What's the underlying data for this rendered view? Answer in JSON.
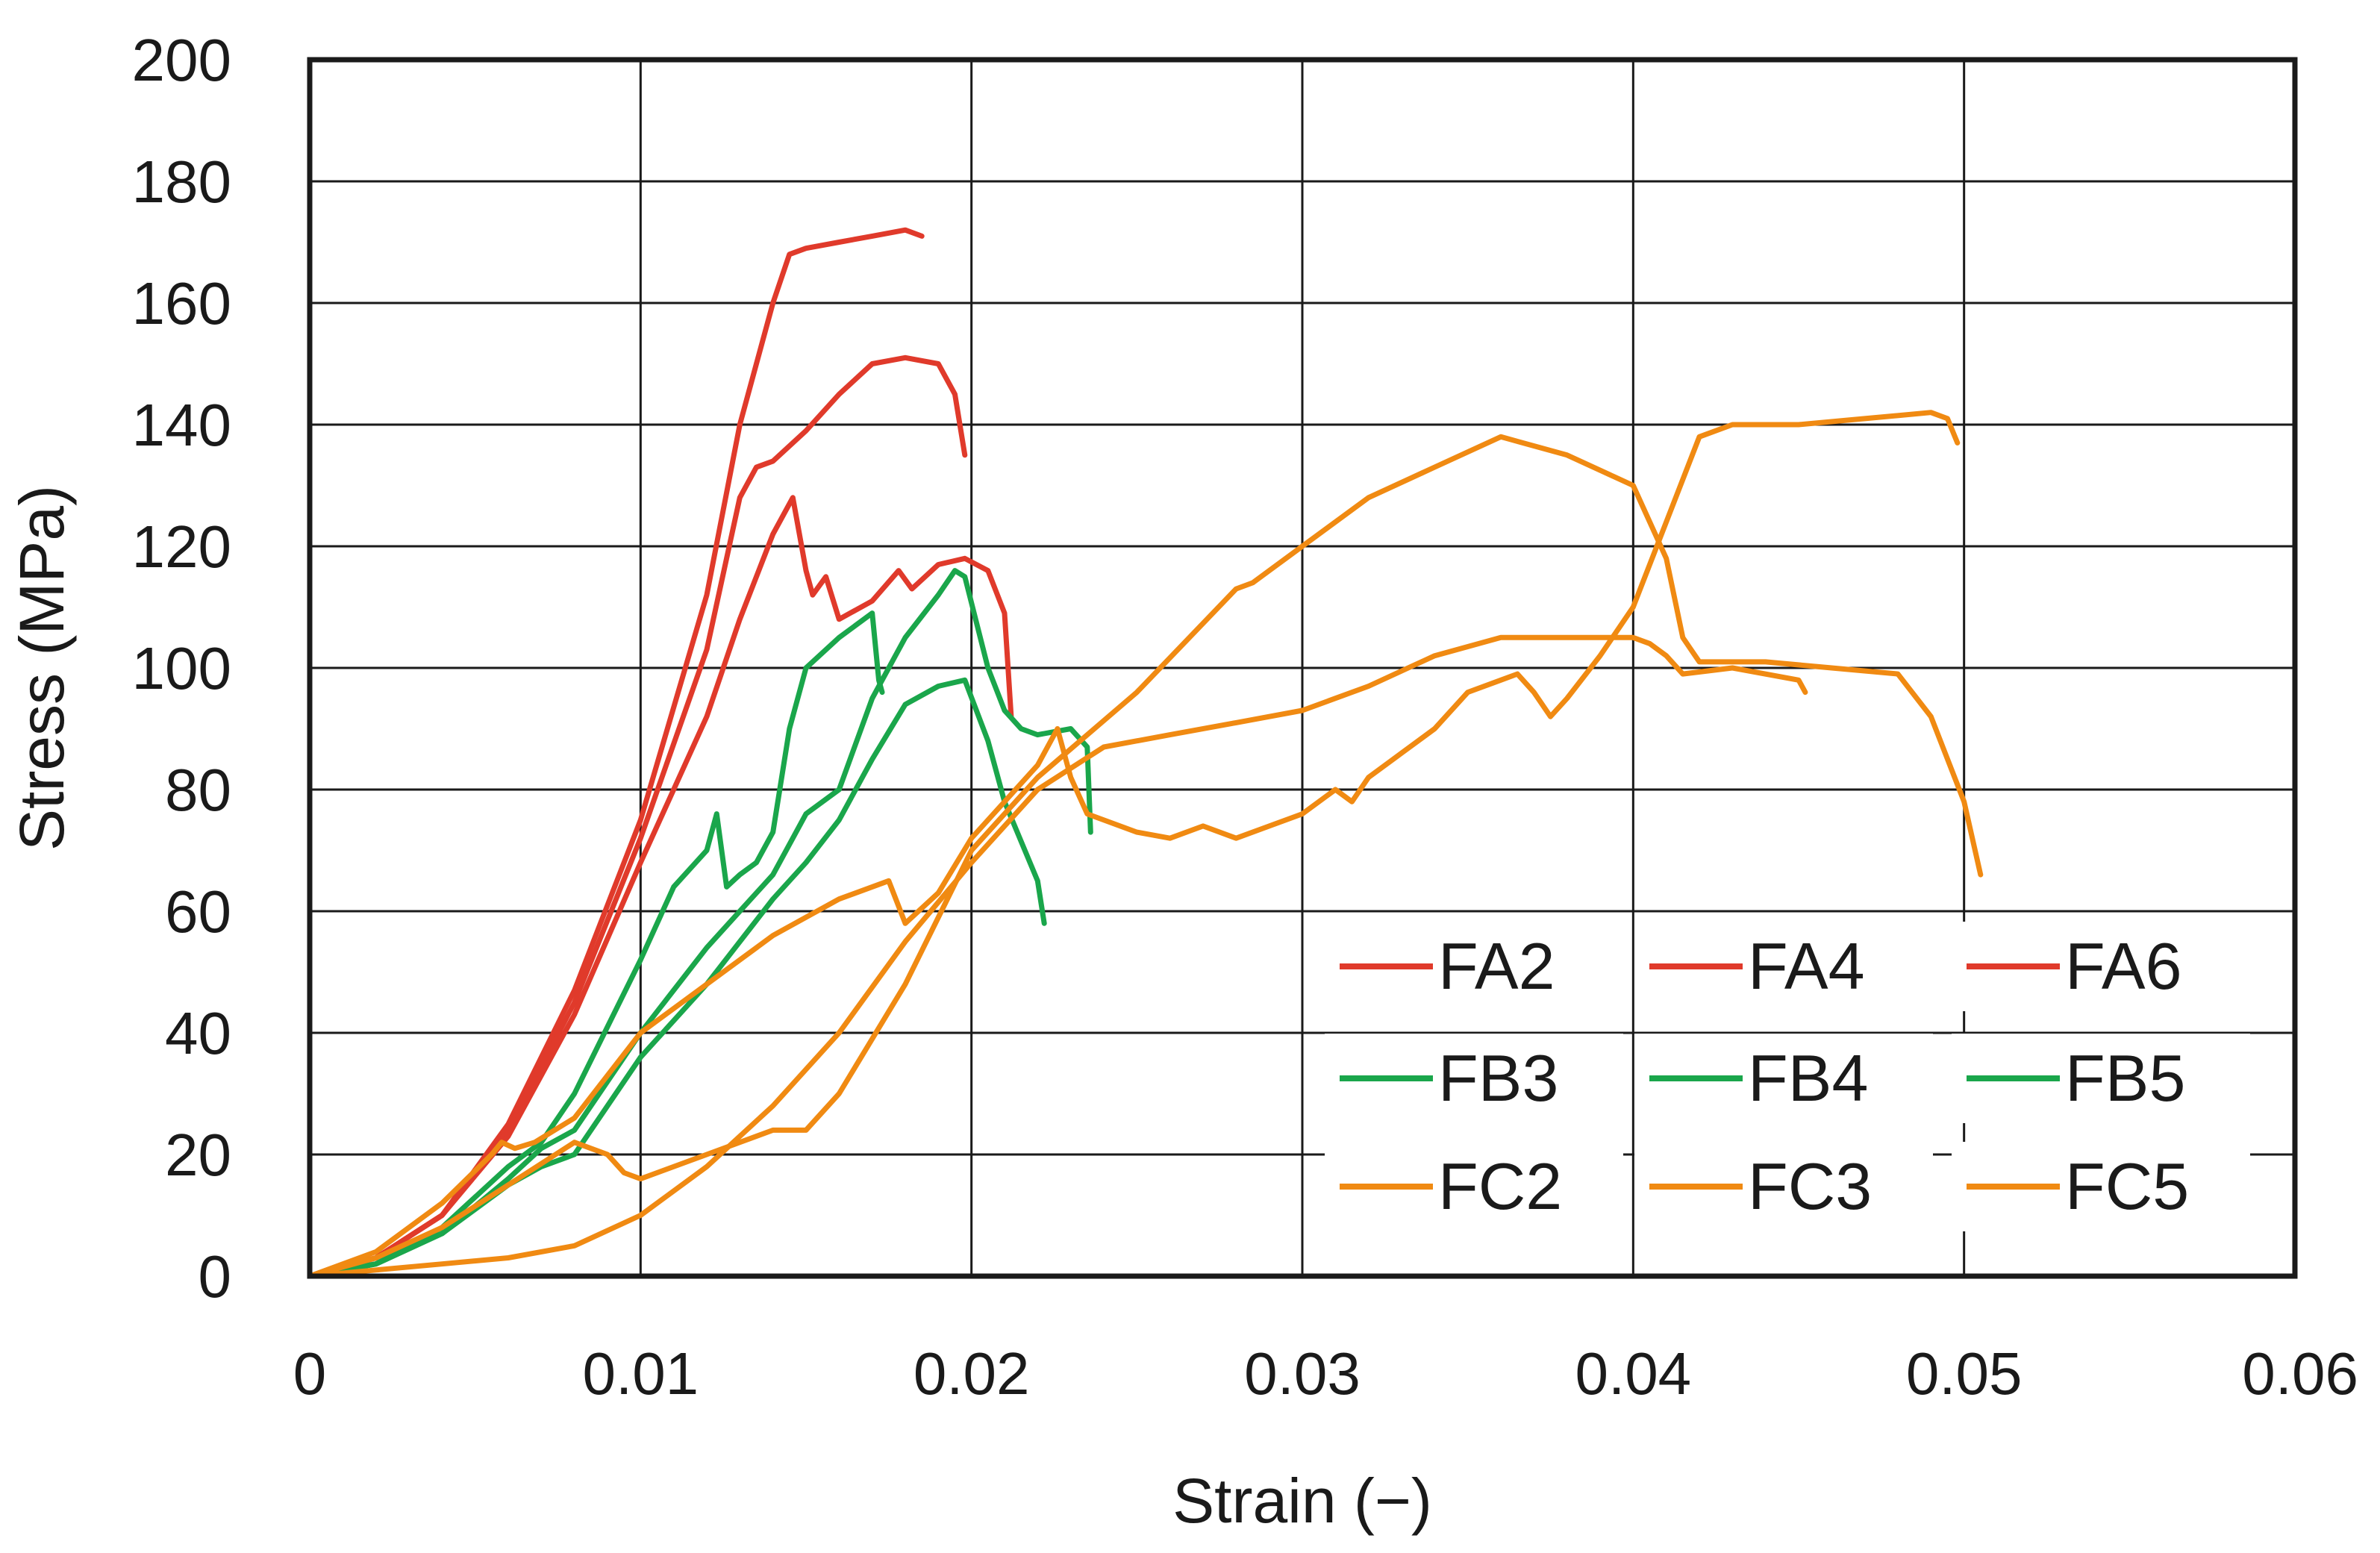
{
  "chart_data": {
    "type": "line",
    "title": "",
    "xlabel": "Strain (−)",
    "ylabel": "Stress (MPa)",
    "xlim": [
      0,
      0.06
    ],
    "ylim": [
      0,
      200
    ],
    "x_ticks": [
      0,
      0.01,
      0.02,
      0.03,
      0.04,
      0.05,
      0.06
    ],
    "x_tick_labels": [
      "0",
      "0.01",
      "0.02",
      "0.03",
      "0.04",
      "0.05",
      "0.06"
    ],
    "y_ticks": [
      0,
      20,
      40,
      60,
      80,
      100,
      120,
      140,
      160,
      180,
      200
    ],
    "y_tick_labels": [
      "0",
      "20",
      "40",
      "60",
      "80",
      "100",
      "120",
      "140",
      "160",
      "180",
      "200"
    ],
    "grid": true,
    "legend_position": "bottom-right",
    "colors": {
      "FA": "#e03a2b",
      "FB": "#1aa64b",
      "FC": "#f08a12"
    },
    "series": [
      {
        "name": "FA2",
        "group": "FA",
        "points": [
          [
            0,
            0
          ],
          [
            0.002,
            3
          ],
          [
            0.004,
            10
          ],
          [
            0.006,
            25
          ],
          [
            0.008,
            47
          ],
          [
            0.01,
            75
          ],
          [
            0.012,
            112
          ],
          [
            0.013,
            140
          ],
          [
            0.014,
            160
          ],
          [
            0.0145,
            168
          ],
          [
            0.015,
            169
          ],
          [
            0.016,
            170
          ],
          [
            0.017,
            171
          ],
          [
            0.018,
            172
          ],
          [
            0.0185,
            171
          ]
        ]
      },
      {
        "name": "FA4",
        "group": "FA",
        "points": [
          [
            0,
            0
          ],
          [
            0.002,
            3
          ],
          [
            0.004,
            10
          ],
          [
            0.006,
            24
          ],
          [
            0.008,
            45
          ],
          [
            0.01,
            72
          ],
          [
            0.012,
            103
          ],
          [
            0.013,
            128
          ],
          [
            0.0135,
            133
          ],
          [
            0.014,
            134
          ],
          [
            0.015,
            139
          ],
          [
            0.016,
            145
          ],
          [
            0.017,
            150
          ],
          [
            0.018,
            151
          ],
          [
            0.019,
            150
          ],
          [
            0.0195,
            145
          ],
          [
            0.0198,
            135
          ]
        ]
      },
      {
        "name": "FA6",
        "group": "FA",
        "points": [
          [
            0,
            0
          ],
          [
            0.002,
            3
          ],
          [
            0.004,
            10
          ],
          [
            0.006,
            23
          ],
          [
            0.008,
            43
          ],
          [
            0.01,
            68
          ],
          [
            0.012,
            92
          ],
          [
            0.013,
            108
          ],
          [
            0.014,
            122
          ],
          [
            0.0146,
            128
          ],
          [
            0.015,
            116
          ],
          [
            0.0152,
            112
          ],
          [
            0.0156,
            115
          ],
          [
            0.016,
            108
          ],
          [
            0.017,
            111
          ],
          [
            0.0178,
            116
          ],
          [
            0.0182,
            113
          ],
          [
            0.019,
            117
          ],
          [
            0.0198,
            118
          ],
          [
            0.0205,
            116
          ],
          [
            0.021,
            109
          ],
          [
            0.0212,
            92
          ]
        ]
      },
      {
        "name": "FB3",
        "group": "FB",
        "points": [
          [
            0,
            0
          ],
          [
            0.002,
            2
          ],
          [
            0.004,
            8
          ],
          [
            0.006,
            18
          ],
          [
            0.007,
            22
          ],
          [
            0.008,
            30
          ],
          [
            0.01,
            52
          ],
          [
            0.011,
            64
          ],
          [
            0.012,
            70
          ],
          [
            0.0123,
            76
          ],
          [
            0.0126,
            64
          ],
          [
            0.013,
            66
          ],
          [
            0.0135,
            68
          ],
          [
            0.014,
            73
          ],
          [
            0.0145,
            90
          ],
          [
            0.015,
            100
          ],
          [
            0.016,
            105
          ],
          [
            0.017,
            109
          ],
          [
            0.0172,
            98
          ],
          [
            0.0173,
            96
          ]
        ]
      },
      {
        "name": "FB4",
        "group": "FB",
        "points": [
          [
            0,
            0
          ],
          [
            0.002,
            2
          ],
          [
            0.004,
            7
          ],
          [
            0.006,
            16
          ],
          [
            0.007,
            21
          ],
          [
            0.008,
            24
          ],
          [
            0.01,
            40
          ],
          [
            0.012,
            54
          ],
          [
            0.013,
            60
          ],
          [
            0.014,
            66
          ],
          [
            0.015,
            76
          ],
          [
            0.016,
            80
          ],
          [
            0.017,
            95
          ],
          [
            0.018,
            105
          ],
          [
            0.019,
            112
          ],
          [
            0.0195,
            116
          ],
          [
            0.0198,
            115
          ],
          [
            0.0205,
            100
          ],
          [
            0.021,
            93
          ],
          [
            0.0215,
            90
          ],
          [
            0.022,
            89
          ],
          [
            0.023,
            90
          ],
          [
            0.0235,
            87
          ],
          [
            0.0236,
            73
          ]
        ]
      },
      {
        "name": "FB5",
        "group": "FB",
        "points": [
          [
            0,
            0
          ],
          [
            0.002,
            2
          ],
          [
            0.004,
            7
          ],
          [
            0.006,
            15
          ],
          [
            0.007,
            18
          ],
          [
            0.008,
            20
          ],
          [
            0.01,
            36
          ],
          [
            0.012,
            48
          ],
          [
            0.013,
            55
          ],
          [
            0.014,
            62
          ],
          [
            0.015,
            68
          ],
          [
            0.016,
            75
          ],
          [
            0.017,
            85
          ],
          [
            0.018,
            94
          ],
          [
            0.019,
            97
          ],
          [
            0.0198,
            98
          ],
          [
            0.0205,
            88
          ],
          [
            0.021,
            78
          ],
          [
            0.022,
            65
          ],
          [
            0.0222,
            58
          ]
        ]
      },
      {
        "name": "FC2",
        "group": "FC",
        "points": [
          [
            0,
            0
          ],
          [
            0.002,
            4
          ],
          [
            0.004,
            12
          ],
          [
            0.0055,
            20
          ],
          [
            0.0058,
            22
          ],
          [
            0.0062,
            21
          ],
          [
            0.0068,
            22
          ],
          [
            0.008,
            26
          ],
          [
            0.01,
            40
          ],
          [
            0.012,
            48
          ],
          [
            0.014,
            56
          ],
          [
            0.016,
            62
          ],
          [
            0.0175,
            65
          ],
          [
            0.018,
            58
          ],
          [
            0.019,
            63
          ],
          [
            0.02,
            72
          ],
          [
            0.022,
            84
          ],
          [
            0.0226,
            90
          ],
          [
            0.023,
            82
          ],
          [
            0.0235,
            76
          ],
          [
            0.025,
            73
          ],
          [
            0.026,
            72
          ],
          [
            0.027,
            74
          ],
          [
            0.028,
            72
          ],
          [
            0.029,
            74
          ],
          [
            0.03,
            76
          ],
          [
            0.031,
            80
          ],
          [
            0.0315,
            78
          ],
          [
            0.032,
            82
          ],
          [
            0.033,
            86
          ],
          [
            0.034,
            90
          ],
          [
            0.035,
            96
          ],
          [
            0.036,
            98
          ],
          [
            0.0365,
            99
          ],
          [
            0.037,
            96
          ],
          [
            0.0375,
            92
          ],
          [
            0.038,
            95
          ],
          [
            0.039,
            102
          ],
          [
            0.04,
            110
          ],
          [
            0.041,
            124
          ],
          [
            0.042,
            138
          ],
          [
            0.043,
            140
          ],
          [
            0.045,
            140
          ],
          [
            0.047,
            141
          ],
          [
            0.049,
            142
          ],
          [
            0.0495,
            141
          ],
          [
            0.0498,
            137
          ]
        ]
      },
      {
        "name": "FC3",
        "group": "FC",
        "points": [
          [
            0,
            0
          ],
          [
            0.002,
            3
          ],
          [
            0.004,
            8
          ],
          [
            0.006,
            15
          ],
          [
            0.008,
            22
          ],
          [
            0.009,
            20
          ],
          [
            0.0095,
            17
          ],
          [
            0.01,
            16
          ],
          [
            0.012,
            20
          ],
          [
            0.014,
            24
          ],
          [
            0.015,
            24
          ],
          [
            0.016,
            30
          ],
          [
            0.018,
            48
          ],
          [
            0.02,
            70
          ],
          [
            0.022,
            82
          ],
          [
            0.025,
            96
          ],
          [
            0.028,
            113
          ],
          [
            0.0285,
            114
          ],
          [
            0.03,
            120
          ],
          [
            0.032,
            128
          ],
          [
            0.034,
            133
          ],
          [
            0.036,
            138
          ],
          [
            0.038,
            135
          ],
          [
            0.04,
            130
          ],
          [
            0.041,
            118
          ],
          [
            0.0415,
            105
          ],
          [
            0.042,
            101
          ],
          [
            0.044,
            101
          ],
          [
            0.046,
            100
          ],
          [
            0.048,
            99
          ],
          [
            0.049,
            92
          ],
          [
            0.05,
            78
          ],
          [
            0.0505,
            66
          ]
        ]
      },
      {
        "name": "FC5",
        "group": "FC",
        "points": [
          [
            0,
            0
          ],
          [
            0.002,
            1
          ],
          [
            0.004,
            2
          ],
          [
            0.006,
            3
          ],
          [
            0.008,
            5
          ],
          [
            0.01,
            10
          ],
          [
            0.012,
            18
          ],
          [
            0.014,
            28
          ],
          [
            0.016,
            40
          ],
          [
            0.018,
            55
          ],
          [
            0.02,
            68
          ],
          [
            0.022,
            80
          ],
          [
            0.024,
            87
          ],
          [
            0.026,
            89
          ],
          [
            0.028,
            91
          ],
          [
            0.03,
            93
          ],
          [
            0.032,
            97
          ],
          [
            0.034,
            102
          ],
          [
            0.036,
            105
          ],
          [
            0.038,
            105
          ],
          [
            0.04,
            105
          ],
          [
            0.0405,
            104
          ],
          [
            0.041,
            102
          ],
          [
            0.0415,
            99
          ],
          [
            0.043,
            100
          ],
          [
            0.045,
            98
          ],
          [
            0.0452,
            96
          ]
        ]
      }
    ]
  }
}
